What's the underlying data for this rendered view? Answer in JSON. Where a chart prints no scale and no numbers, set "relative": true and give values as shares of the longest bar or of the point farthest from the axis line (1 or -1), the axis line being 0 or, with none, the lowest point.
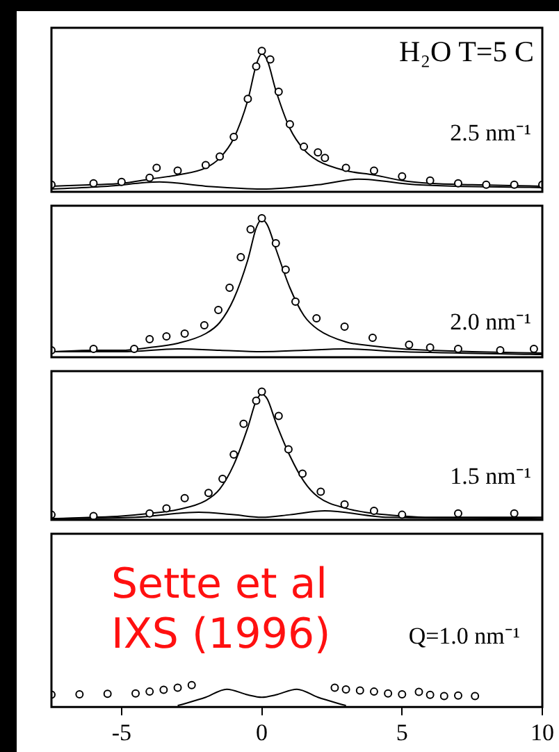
{
  "chart_data": [
    {
      "type": "line",
      "relative": true,
      "xlim": [
        -7.5,
        10
      ],
      "xticks": [
        -5,
        0,
        5,
        10
      ],
      "tick_labels": false,
      "grid": false,
      "legend": false,
      "annotations": [
        "H₂O  T=5 C",
        "2.5  nm⁻¹"
      ],
      "series": [
        {
          "type": "scatter",
          "marker": "circle",
          "color": "#000000",
          "x": [
            -7.5,
            -6,
            -5,
            -4,
            -3.75,
            -3,
            -2,
            -1.5,
            -1,
            -0.5,
            -0.2,
            0,
            0.3,
            0.6,
            1,
            1.5,
            2,
            2.25,
            3,
            4,
            5,
            6,
            7,
            8,
            9,
            10
          ],
          "values": [
            0.05,
            0.06,
            0.07,
            0.1,
            0.17,
            0.15,
            0.19,
            0.25,
            0.39,
            0.66,
            0.89,
            1,
            0.94,
            0.71,
            0.48,
            0.32,
            0.28,
            0.24,
            0.17,
            0.15,
            0.11,
            0.08,
            0.06,
            0.05,
            0.05,
            0.05
          ]
        },
        {
          "type": "line",
          "marker": "none",
          "color": "#000000",
          "x": [
            -7.5,
            -6,
            -5,
            -4,
            -3,
            -2,
            -1.5,
            -1,
            -0.5,
            -0.2,
            0,
            0.2,
            0.5,
            1,
            1.5,
            2,
            3,
            4,
            5,
            6,
            7.5,
            10
          ],
          "values": [
            0.04,
            0.05,
            0.06,
            0.09,
            0.12,
            0.17,
            0.24,
            0.38,
            0.65,
            0.9,
            0.98,
            0.93,
            0.72,
            0.45,
            0.3,
            0.22,
            0.15,
            0.12,
            0.08,
            0.06,
            0.05,
            0.04
          ]
        },
        {
          "type": "line",
          "marker": "none",
          "color": "#000000",
          "x": [
            -7.5,
            -5.5,
            -3.65,
            -2,
            0,
            2,
            3.45,
            5.5,
            10
          ],
          "values": [
            0.02,
            0.04,
            0.07,
            0.04,
            0.02,
            0.05,
            0.09,
            0.05,
            0.03
          ]
        }
      ]
    },
    {
      "type": "line",
      "relative": true,
      "xlim": [
        -7.5,
        10
      ],
      "xticks": [
        -5,
        0,
        5,
        10
      ],
      "tick_labels": false,
      "grid": false,
      "legend": false,
      "annotations": [
        "2.0  nm⁻¹"
      ],
      "series": [
        {
          "type": "scatter",
          "marker": "circle",
          "color": "#000000",
          "x": [
            -7.5,
            -6,
            -4.55,
            -4,
            -3.4,
            -2.75,
            -2.05,
            -1.55,
            -1.15,
            -0.75,
            -0.4,
            0,
            0.5,
            0.85,
            1.2,
            1.95,
            2.95,
            3.95,
            5.25,
            6,
            7,
            8.5,
            9.7
          ],
          "values": [
            0.05,
            0.06,
            0.06,
            0.13,
            0.15,
            0.17,
            0.23,
            0.34,
            0.5,
            0.72,
            0.92,
            1,
            0.82,
            0.63,
            0.4,
            0.28,
            0.22,
            0.14,
            0.09,
            0.07,
            0.06,
            0.05,
            0.06
          ]
        },
        {
          "type": "line",
          "marker": "none",
          "color": "#000000",
          "x": [
            -7.5,
            -6,
            -5,
            -4,
            -3,
            -2,
            -1.5,
            -1,
            -0.5,
            -0.2,
            0,
            0.2,
            0.5,
            1,
            1.5,
            2,
            3,
            4,
            5,
            6,
            7.5,
            10
          ],
          "values": [
            0.04,
            0.05,
            0.05,
            0.07,
            0.1,
            0.17,
            0.25,
            0.42,
            0.7,
            0.93,
            0.99,
            0.95,
            0.78,
            0.5,
            0.3,
            0.2,
            0.11,
            0.08,
            0.06,
            0.05,
            0.04,
            0.03
          ]
        },
        {
          "type": "line",
          "marker": "none",
          "color": "#000000",
          "x": [
            -7.5,
            -5,
            -2.9,
            -1.5,
            0,
            1.5,
            2.95,
            5,
            10
          ],
          "values": [
            0.04,
            0.04,
            0.06,
            0.05,
            0.04,
            0.05,
            0.06,
            0.04,
            0.02
          ]
        }
      ]
    },
    {
      "type": "line",
      "relative": true,
      "xlim": [
        -7.5,
        10
      ],
      "xticks": [
        -5,
        0,
        5,
        10
      ],
      "tick_labels": false,
      "grid": false,
      "legend": false,
      "annotations": [
        "1.5  nm⁻¹"
      ],
      "series": [
        {
          "type": "scatter",
          "marker": "circle",
          "color": "#000000",
          "x": [
            -7.5,
            -6,
            -4,
            -3.4,
            -2.75,
            -1.9,
            -1.4,
            -1,
            -0.65,
            -0.2,
            0,
            0.6,
            0.95,
            1.45,
            2.1,
            2.95,
            4,
            5,
            7,
            9
          ],
          "values": [
            0.04,
            0.03,
            0.05,
            0.09,
            0.17,
            0.21,
            0.32,
            0.51,
            0.75,
            0.93,
            1,
            0.81,
            0.55,
            0.36,
            0.22,
            0.12,
            0.07,
            0.04,
            0.05,
            0.05
          ]
        },
        {
          "type": "line",
          "marker": "none",
          "color": "#000000",
          "x": [
            -7.5,
            -6,
            -5,
            -4,
            -3,
            -2,
            -1.5,
            -1,
            -0.5,
            -0.2,
            0,
            0.2,
            0.5,
            1,
            1.5,
            2,
            3,
            4,
            5,
            6,
            7.5,
            10
          ],
          "values": [
            0.01,
            0.02,
            0.03,
            0.05,
            0.08,
            0.15,
            0.24,
            0.43,
            0.72,
            0.93,
            0.98,
            0.94,
            0.76,
            0.5,
            0.3,
            0.18,
            0.09,
            0.05,
            0.03,
            0.02,
            0.02,
            0.02
          ]
        },
        {
          "type": "line",
          "marker": "none",
          "color": "#000000",
          "x": [
            -7.5,
            -4.5,
            -2.25,
            -1,
            0,
            1,
            2.25,
            4.5,
            10
          ],
          "values": [
            0.01,
            0.02,
            0.06,
            0.04,
            0.02,
            0.04,
            0.07,
            0.02,
            0.01
          ]
        }
      ]
    },
    {
      "type": "line",
      "relative": true,
      "xlim": [
        -7.5,
        10
      ],
      "xticks": [
        -5,
        0,
        5,
        10
      ],
      "tick_labels": "x",
      "grid": false,
      "legend": false,
      "annotations": [
        "Sette et al IXS (1996)",
        "Q=1.0  nm⁻¹"
      ],
      "series": [
        {
          "type": "scatter",
          "marker": "circle",
          "color": "#000000",
          "x": [
            -7.5,
            -6.5,
            -5.5,
            -4.5,
            -4,
            -3.5,
            -3,
            -2.5,
            2.6,
            3,
            3.5,
            4,
            4.5,
            5,
            5.6,
            6,
            6.5,
            7,
            7.6
          ],
          "values": [
            0.56,
            0.58,
            0.6,
            0.62,
            0.7,
            0.78,
            0.88,
            1,
            0.88,
            0.8,
            0.75,
            0.7,
            0.62,
            0.58,
            0.69,
            0.55,
            0.5,
            0.52,
            0.5
          ]
        },
        {
          "type": "line",
          "marker": "none",
          "color": "#000000",
          "x": [
            -3,
            -2,
            -1.25,
            -0.5,
            0,
            0.5,
            1.25,
            2,
            3
          ],
          "values": [
            0.06,
            0.44,
            0.81,
            0.55,
            0.44,
            0.55,
            0.81,
            0.44,
            0.06
          ]
        }
      ]
    }
  ]
}
